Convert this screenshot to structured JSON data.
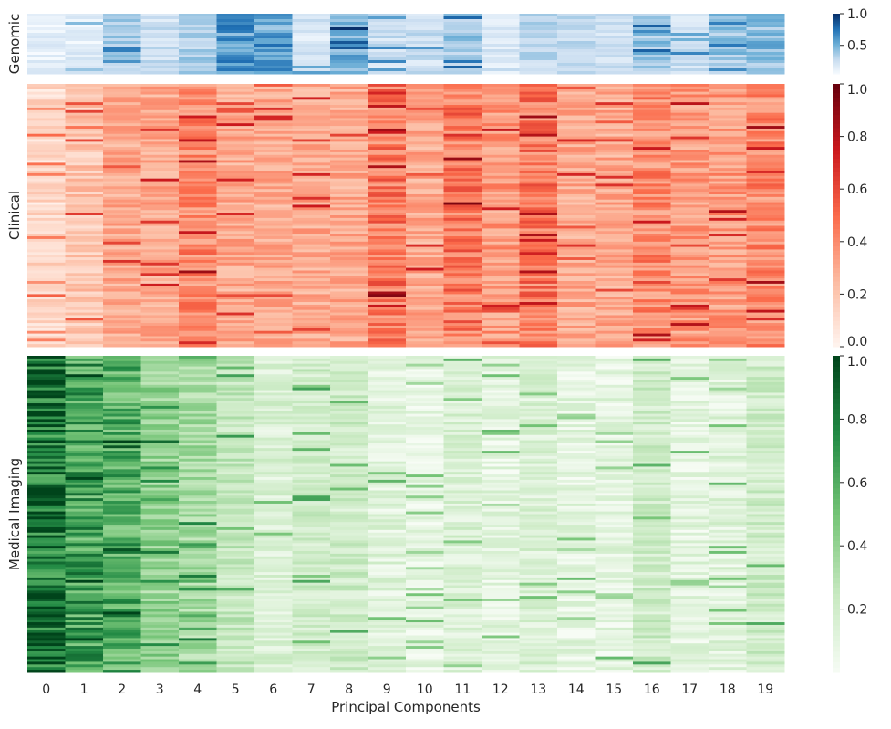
{
  "chart_data": [
    {
      "type": "heatmap",
      "ylabel": "Genomic",
      "colormap": "Blues",
      "colorbar_ticks": [
        "0.5",
        "1.0"
      ],
      "clim": [
        0.05,
        1.0
      ],
      "rows": 22,
      "categories": [
        "0",
        "1",
        "2",
        "3",
        "4",
        "5",
        "6",
        "7",
        "8",
        "9",
        "10",
        "11",
        "12",
        "13",
        "14",
        "15",
        "16",
        "17",
        "18",
        "19"
      ],
      "values": [
        0.12,
        0.15,
        0.35,
        0.25,
        0.35,
        0.6,
        0.55,
        0.2,
        0.5,
        0.25,
        0.25,
        0.4,
        0.2,
        0.3,
        0.3,
        0.25,
        0.4,
        0.25,
        0.4,
        0.45
      ]
    },
    {
      "type": "heatmap",
      "ylabel": "Clinical",
      "colormap": "Reds",
      "colorbar_ticks": [
        "0.0",
        "0.2",
        "0.4",
        "0.6",
        "0.8",
        "1.0"
      ],
      "clim": [
        0.0,
        1.0
      ],
      "rows": 100,
      "categories": [
        "0",
        "1",
        "2",
        "3",
        "4",
        "5",
        "6",
        "7",
        "8",
        "9",
        "10",
        "11",
        "12",
        "13",
        "14",
        "15",
        "16",
        "17",
        "18",
        "19"
      ],
      "values": [
        0.12,
        0.2,
        0.3,
        0.3,
        0.4,
        0.3,
        0.3,
        0.3,
        0.3,
        0.45,
        0.3,
        0.45,
        0.35,
        0.45,
        0.3,
        0.3,
        0.4,
        0.35,
        0.35,
        0.4
      ]
    },
    {
      "type": "heatmap",
      "ylabel": "Medical Imaging",
      "xlabel": "Principal Components",
      "colormap": "Greens",
      "colorbar_ticks": [
        "0.2",
        "0.4",
        "0.6",
        "0.8",
        "1.0"
      ],
      "clim": [
        0.0,
        1.0
      ],
      "rows": 120,
      "categories": [
        "0",
        "1",
        "2",
        "3",
        "4",
        "5",
        "6",
        "7",
        "8",
        "9",
        "10",
        "11",
        "12",
        "13",
        "14",
        "15",
        "16",
        "17",
        "18",
        "19"
      ],
      "values": [
        0.85,
        0.65,
        0.6,
        0.4,
        0.35,
        0.25,
        0.15,
        0.2,
        0.2,
        0.12,
        0.08,
        0.15,
        0.1,
        0.15,
        0.1,
        0.1,
        0.2,
        0.1,
        0.12,
        0.2
      ]
    }
  ]
}
